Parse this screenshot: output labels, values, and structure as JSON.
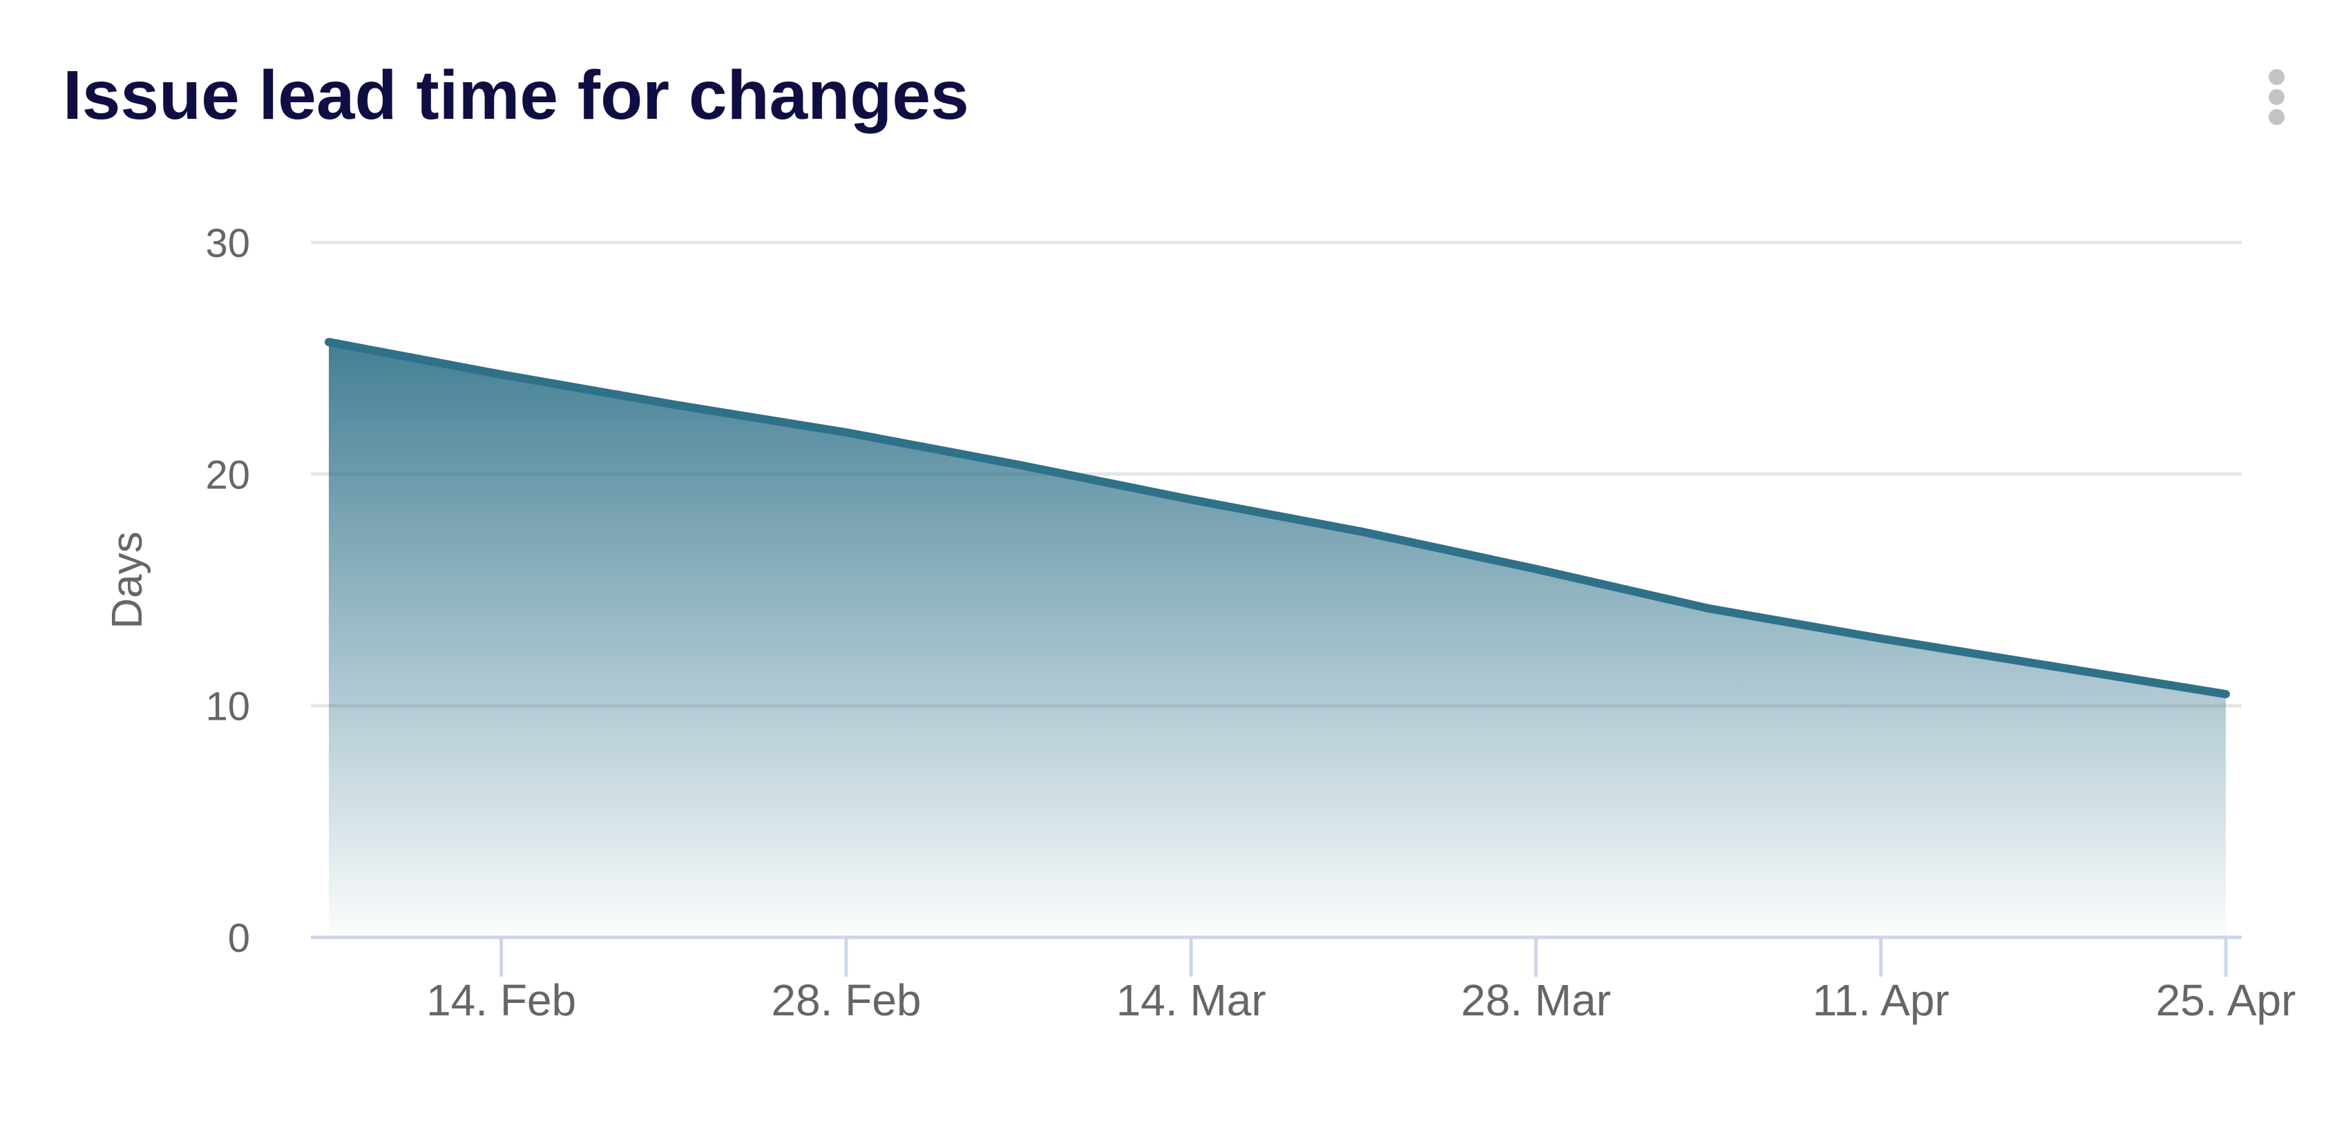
{
  "header": {
    "title": "Issue lead time for changes",
    "menu_icon": "kebab-menu-icon"
  },
  "chart_data": {
    "type": "area",
    "title": "Issue lead time for changes",
    "xlabel": "",
    "ylabel": "Days",
    "ylim": [
      0,
      30
    ],
    "yticks": [
      0,
      10,
      20,
      30
    ],
    "grid": true,
    "legend_visible": false,
    "x_unit": "date",
    "series": [
      {
        "name": "Issue lead time for changes",
        "x": [
          "7. Feb",
          "14. Feb",
          "21. Feb",
          "28. Feb",
          "7. Mar",
          "14. Mar",
          "21. Mar",
          "28. Mar",
          "4. Apr",
          "11. Apr",
          "18. Apr",
          "25. Apr"
        ],
        "day_offsets": [
          0,
          7,
          14,
          21,
          28,
          35,
          42,
          49,
          56,
          63,
          70,
          77
        ],
        "values": [
          25.7,
          24.3,
          23.0,
          21.8,
          20.4,
          18.9,
          17.5,
          15.9,
          14.2,
          12.9,
          11.7,
          10.5
        ]
      }
    ],
    "xticks": [
      {
        "label": "14. Feb",
        "day": 7
      },
      {
        "label": "28. Feb",
        "day": 21
      },
      {
        "label": "14. Mar",
        "day": 35
      },
      {
        "label": "28. Mar",
        "day": 49
      },
      {
        "label": "11. Apr",
        "day": 63
      },
      {
        "label": "25. Apr",
        "day": 77
      }
    ]
  },
  "colors": {
    "title": "#0e0e42",
    "series_line": "#2e7189",
    "area_fill_top_opacity": "0.9",
    "area_fill_bottom_opacity": "0.02",
    "axis_label": "#666666",
    "axis_line": "#ccd6eb",
    "gridline": "#e6e6e6",
    "menu_dots": "#c4c4c4",
    "background": "#ffffff"
  }
}
